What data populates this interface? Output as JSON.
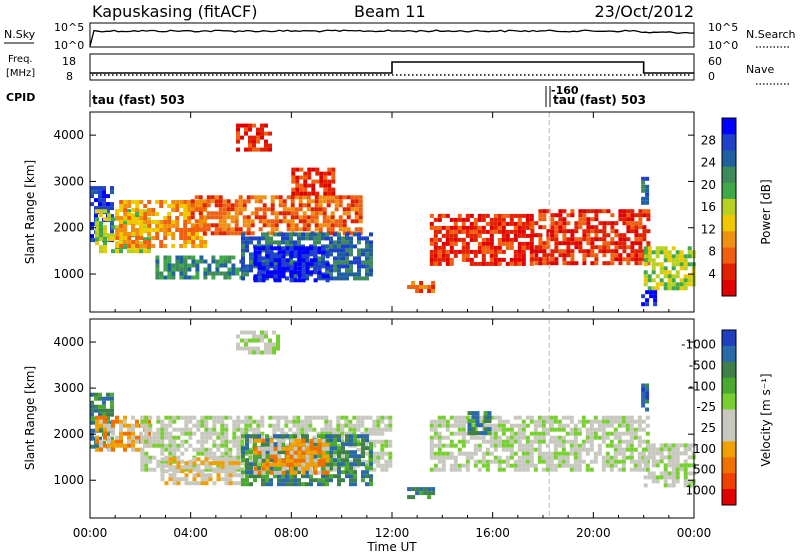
{
  "header": {
    "station": "Kapuskasing (fitACF)",
    "beam": "Beam 11",
    "date": "23/Oct/2012"
  },
  "noise_panel": {
    "left_label": "N.Sky",
    "right_label": "N.Search",
    "left_ticks": [
      "10^5",
      "10^0"
    ],
    "right_ticks": [
      "10^5",
      "10^0"
    ]
  },
  "freq_panel": {
    "left_label_line1": "Freq.",
    "left_label_line2": "[MHz]",
    "left_ticks": [
      "18",
      "8"
    ],
    "right_label": "Nave",
    "right_ticks": [
      "60",
      "0"
    ]
  },
  "cpid_panel": {
    "label": "CPID",
    "segment1": "tau (fast) 503",
    "segment2_id": "-160",
    "segment2": "tau (fast) 503"
  },
  "colors": {
    "axis": "#000000",
    "marker": "#bbbbbb"
  },
  "chart_data": [
    {
      "type": "heatmap",
      "title": "",
      "xlabel": "Time UT",
      "ylabel": "Slant Range [km]",
      "x_ticks": [
        "00:00",
        "04:00",
        "08:00",
        "12:00",
        "16:00",
        "20:00",
        "00:00"
      ],
      "x_range_hours": [
        0,
        24
      ],
      "y_ticks": [
        1000,
        2000,
        3000,
        4000
      ],
      "ylim": [
        180,
        4500
      ],
      "colorbar": {
        "label": "Power [dB]",
        "ticks": [
          "4",
          "8",
          "12",
          "16",
          "20",
          "24",
          "28"
        ],
        "colors": [
          "#0000ff",
          "#1f40c8",
          "#2060a0",
          "#3f8a5a",
          "#3fa84a",
          "#b8d020",
          "#f0c800",
          "#f09010",
          "#f06010",
          "#e02000",
          "#e00000"
        ]
      },
      "regions": [
        {
          "t": [
            0.0,
            0.8
          ],
          "r": [
            1700,
            2900
          ],
          "level": 9
        },
        {
          "t": [
            0.2,
            2.4
          ],
          "r": [
            1500,
            2400
          ],
          "level": 5
        },
        {
          "t": [
            1.0,
            4.5
          ],
          "r": [
            1600,
            2600
          ],
          "level": 3
        },
        {
          "t": [
            2.6,
            6.0
          ],
          "r": [
            900,
            1400
          ],
          "level": 7
        },
        {
          "t": [
            4.0,
            10.8
          ],
          "r": [
            1850,
            2700
          ],
          "level": 2
        },
        {
          "t": [
            5.8,
            7.2
          ],
          "r": [
            3700,
            4250
          ],
          "level": 1
        },
        {
          "t": [
            6.0,
            11.2
          ],
          "r": [
            900,
            1900
          ],
          "level": 8
        },
        {
          "t": [
            6.5,
            9.5
          ],
          "r": [
            900,
            1600
          ],
          "level": 10
        },
        {
          "t": [
            8.0,
            9.6
          ],
          "r": [
            2700,
            3300
          ],
          "level": 1
        },
        {
          "t": [
            12.6,
            13.6
          ],
          "r": [
            600,
            850
          ],
          "level": 2
        },
        {
          "t": [
            13.5,
            17.5
          ],
          "r": [
            1250,
            2300
          ],
          "level": 1
        },
        {
          "t": [
            17.5,
            22.2
          ],
          "r": [
            1250,
            2400
          ],
          "level": 1
        },
        {
          "t": [
            22.0,
            24.0
          ],
          "r": [
            700,
            1600
          ],
          "level": 5
        },
        {
          "t": [
            21.9,
            22.4
          ],
          "r": [
            350,
            650
          ],
          "level": 10
        },
        {
          "t": [
            21.9,
            22.2
          ],
          "r": [
            2500,
            3100
          ],
          "level": 8
        }
      ]
    },
    {
      "type": "heatmap",
      "title": "",
      "xlabel": "Time UT",
      "ylabel": "Slant Range [km]",
      "x_ticks": [
        "00:00",
        "04:00",
        "08:00",
        "12:00",
        "16:00",
        "20:00",
        "00:00"
      ],
      "x_range_hours": [
        0,
        24
      ],
      "y_ticks": [
        1000,
        2000,
        3000,
        4000
      ],
      "ylim": [
        180,
        4500
      ],
      "colorbar": {
        "label": "Velocity [m s⁻¹]",
        "ticks": [
          "1000",
          "500",
          "100",
          "25",
          "-25",
          "-100",
          "-500",
          "-1000"
        ],
        "colors": [
          "#1f3fbf",
          "#2a6aa8",
          "#3f7f4a",
          "#4aaa30",
          "#77d030",
          "#c8c8c0",
          "#c8c8c0",
          "#f0a000",
          "#f07000",
          "#f04000",
          "#e00000"
        ]
      },
      "regions": [
        {
          "t": [
            0.0,
            0.9
          ],
          "r": [
            1700,
            2900
          ],
          "level": 8
        },
        {
          "t": [
            0.2,
            2.4
          ],
          "r": [
            1700,
            2400
          ],
          "level": 3
        },
        {
          "t": [
            2.0,
            12.0
          ],
          "r": [
            1200,
            2400
          ],
          "level": 5
        },
        {
          "t": [
            2.8,
            6.0
          ],
          "r": [
            900,
            1500
          ],
          "level": 4
        },
        {
          "t": [
            5.8,
            7.5
          ],
          "r": [
            3800,
            4250
          ],
          "level": 5
        },
        {
          "t": [
            6.0,
            11.2
          ],
          "r": [
            900,
            2000
          ],
          "level": 8
        },
        {
          "t": [
            6.5,
            9.5
          ],
          "r": [
            1200,
            1900
          ],
          "level": 3
        },
        {
          "t": [
            12.6,
            13.6
          ],
          "r": [
            600,
            850
          ],
          "level": 8
        },
        {
          "t": [
            13.5,
            22.2
          ],
          "r": [
            1250,
            2400
          ],
          "level": 5
        },
        {
          "t": [
            15.0,
            15.8
          ],
          "r": [
            2000,
            2500
          ],
          "level": 8
        },
        {
          "t": [
            22.0,
            24.0
          ],
          "r": [
            900,
            1800
          ],
          "level": 5
        },
        {
          "t": [
            21.9,
            22.2
          ],
          "r": [
            2500,
            3100
          ],
          "level": 9
        }
      ]
    }
  ]
}
